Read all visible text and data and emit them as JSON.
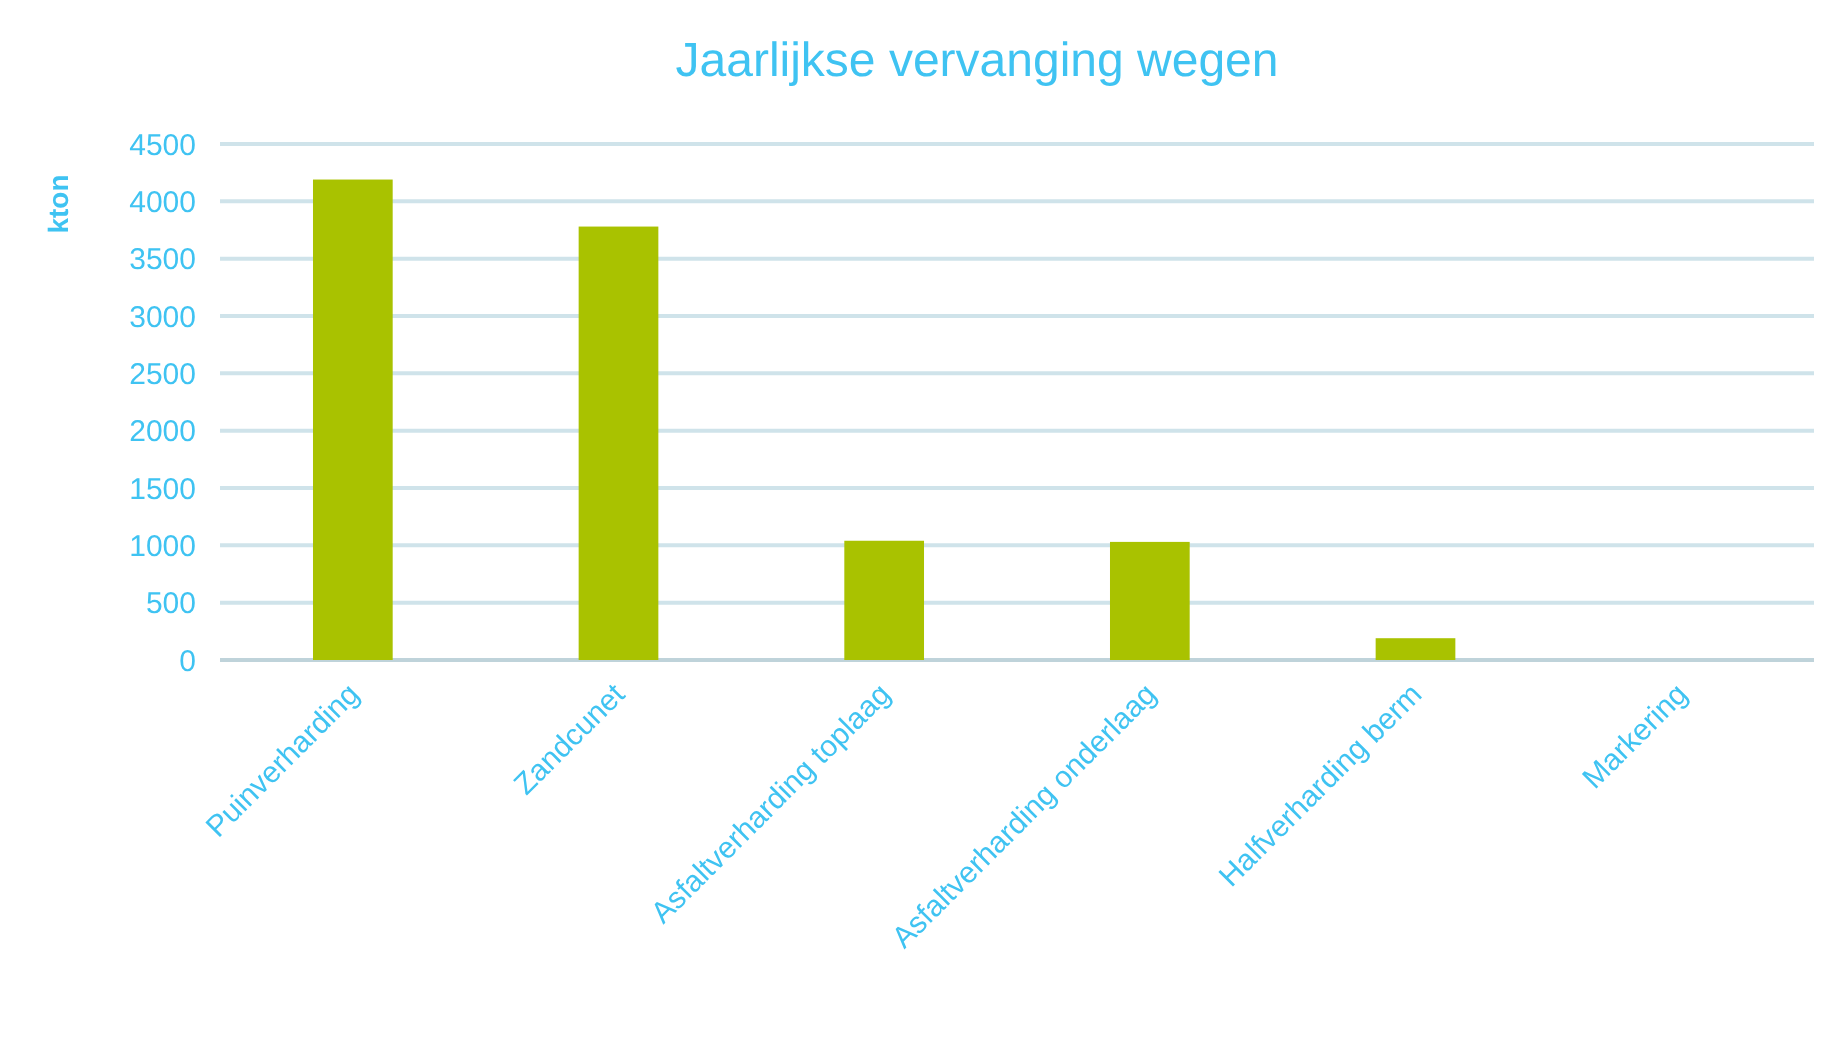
{
  "chart_data": {
    "type": "bar",
    "title": "Jaarlijkse vervanging wegen",
    "ylabel": "kton",
    "categories": [
      "Puinverharding",
      "Zandcunet",
      "Asfaltverharding toplaag",
      "Asfaltverharding onderlaag",
      "Halfverharding berm",
      "Markering"
    ],
    "values": [
      4190,
      3780,
      1040,
      1030,
      190,
      0
    ],
    "color": "#a9c200",
    "ylim": [
      0,
      4500
    ],
    "yticks": [
      0,
      500,
      1000,
      1500,
      2000,
      2500,
      3000,
      3500,
      4000,
      4500
    ],
    "grid": "y"
  }
}
